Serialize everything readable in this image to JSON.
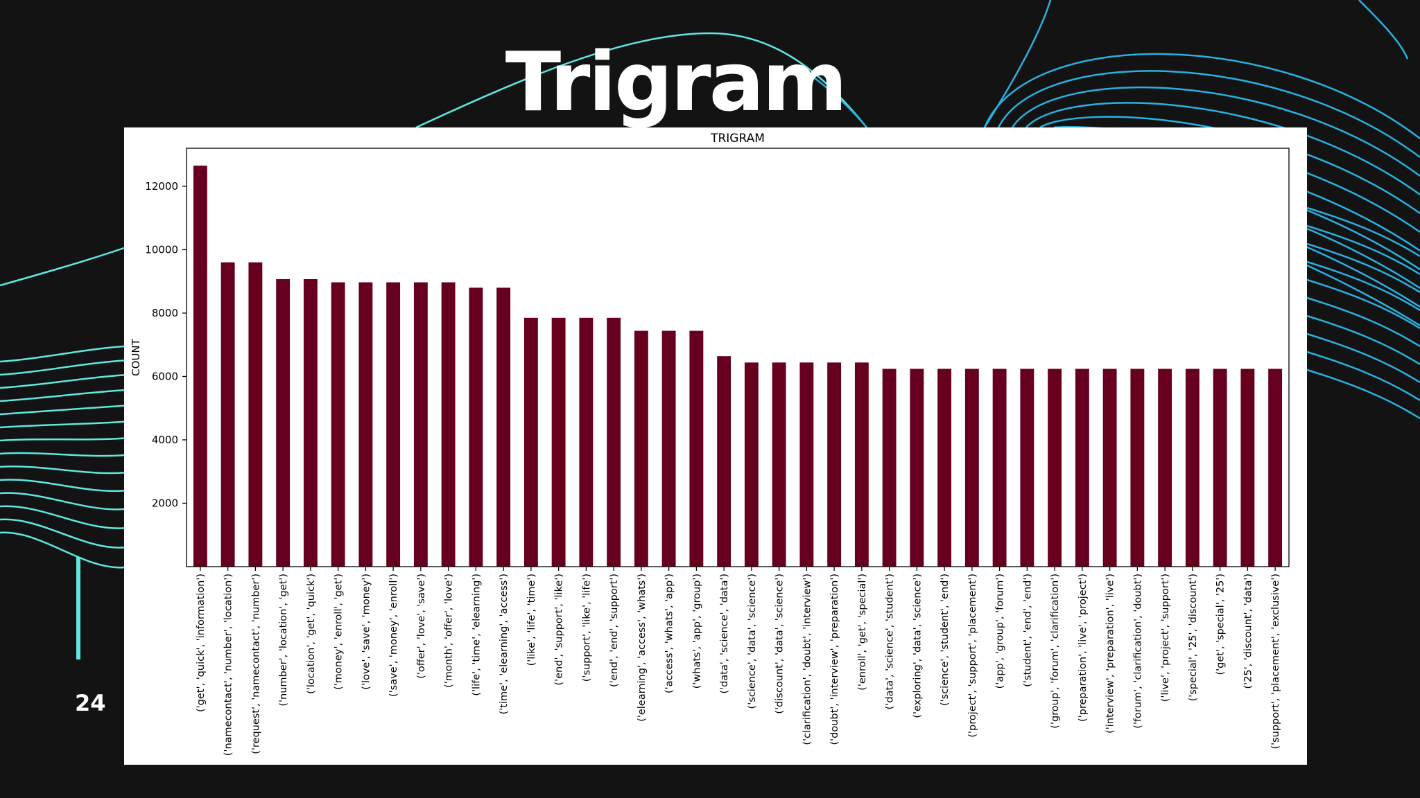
{
  "slide": {
    "title": "Trigram",
    "number": "24",
    "accent_color": "#5ee8e0",
    "line_colors": [
      "#2ab0e0",
      "#5ee8e0"
    ]
  },
  "chart_data": {
    "type": "bar",
    "title": "TRIGRAM",
    "xlabel": "",
    "ylabel": "COUNT",
    "ylim": [
      0,
      13200
    ],
    "yticks": [
      2000,
      4000,
      6000,
      8000,
      10000,
      12000
    ],
    "bar_color": "#67001f",
    "grid": false,
    "categories": [
      "('get', 'quick', 'information')",
      "('namecontact', 'number', 'location')",
      "('request', 'namecontact', 'number')",
      "('number', 'location', 'get')",
      "('location', 'get', 'quick')",
      "('money', 'enroll', 'get')",
      "('love', 'save', 'money')",
      "('save', 'money', 'enroll')",
      "('offer', 'love', 'save')",
      "('month', 'offer', 'love')",
      "('life', 'time', 'elearning')",
      "('time', 'elearning', 'access')",
      "('like', 'life', 'time')",
      "('end', 'support', 'like')",
      "('support', 'like', 'life')",
      "('end', 'end', 'support')",
      "('elearning', 'access', 'whats')",
      "('access', 'whats', 'app')",
      "('whats', 'app', 'group')",
      "('data', 'science', 'data')",
      "('science', 'data', 'science')",
      "('discount', 'data', 'science')",
      "('clarification', 'doubt', 'interview')",
      "('doubt', 'interview', 'preparation')",
      "('enroll', 'get', 'special')",
      "('data', 'science', 'student')",
      "('exploring', 'data', 'science')",
      "('science', 'student', 'end')",
      "('project', 'support', 'placement')",
      "('app', 'group', 'forum')",
      "('student', 'end', 'end')",
      "('group', 'forum', 'clarification')",
      "('preparation', 'live', 'project')",
      "('interview', 'preparation', 'live')",
      "('forum', 'clarification', 'doubt')",
      "('live', 'project', 'support')",
      "('special', '25', 'discount')",
      "('get', 'special', '25')",
      "('25', 'discount', 'data')",
      "('support', 'placement', 'exclusive')"
    ],
    "values": [
      12650,
      9600,
      9600,
      9070,
      9070,
      8970,
      8970,
      8970,
      8970,
      8970,
      8800,
      8800,
      7850,
      7850,
      7850,
      7850,
      7440,
      7440,
      7440,
      6640,
      6440,
      6440,
      6440,
      6440,
      6440,
      6240,
      6240,
      6240,
      6240,
      6240,
      6240,
      6240,
      6240,
      6240,
      6240,
      6240,
      6240,
      6240,
      6240,
      6240
    ]
  }
}
